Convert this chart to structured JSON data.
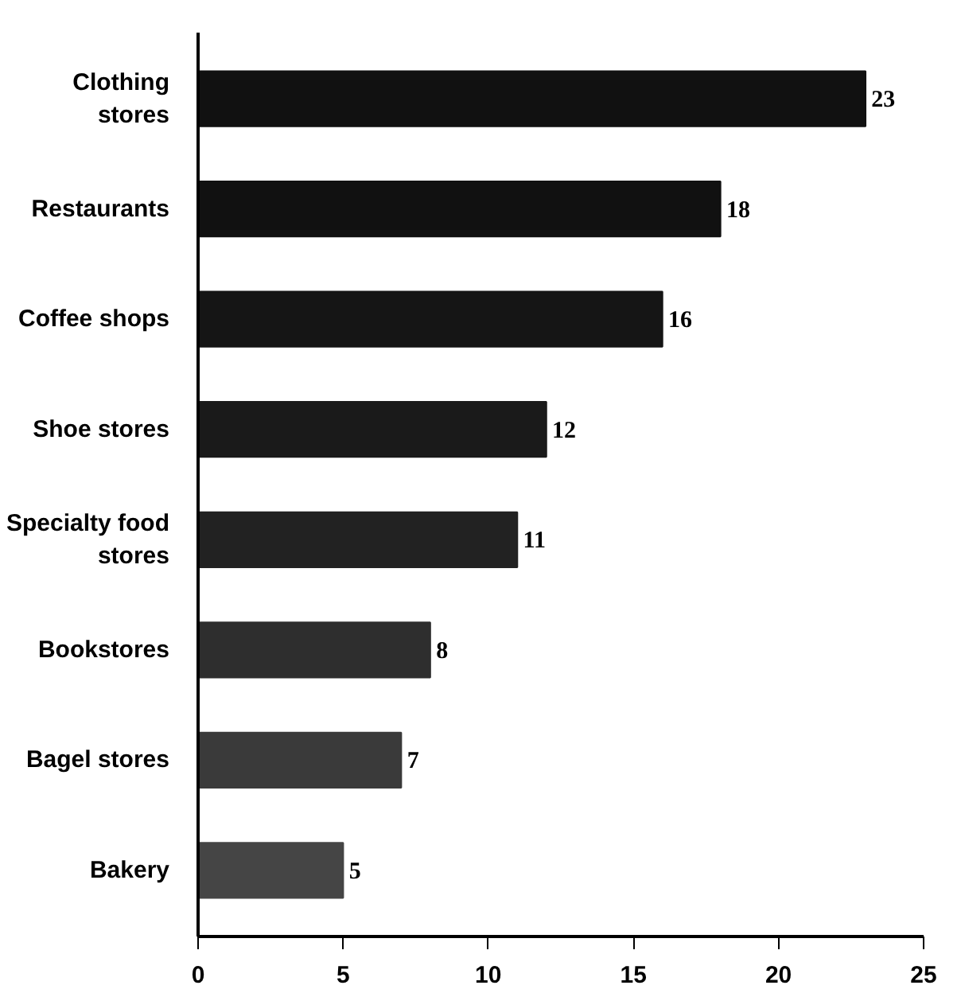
{
  "chart_data": {
    "type": "bar",
    "orientation": "horizontal",
    "categories": [
      "Clothing stores",
      "Restaurants",
      "Coffee shops",
      "Shoe stores",
      "Specialty food stores",
      "Bookstores",
      "Bagel stores",
      "Bakery"
    ],
    "values": [
      23,
      18,
      16,
      12,
      11,
      8,
      7,
      5
    ],
    "colors": [
      "#111111",
      "#111111",
      "#151515",
      "#1a1a1a",
      "#222222",
      "#2e2e2e",
      "#3a3a3a",
      "#454545"
    ],
    "xlim": [
      0,
      25
    ],
    "xticks": [
      0,
      5,
      10,
      15,
      20,
      25
    ],
    "grid": false,
    "data_labels": true
  }
}
